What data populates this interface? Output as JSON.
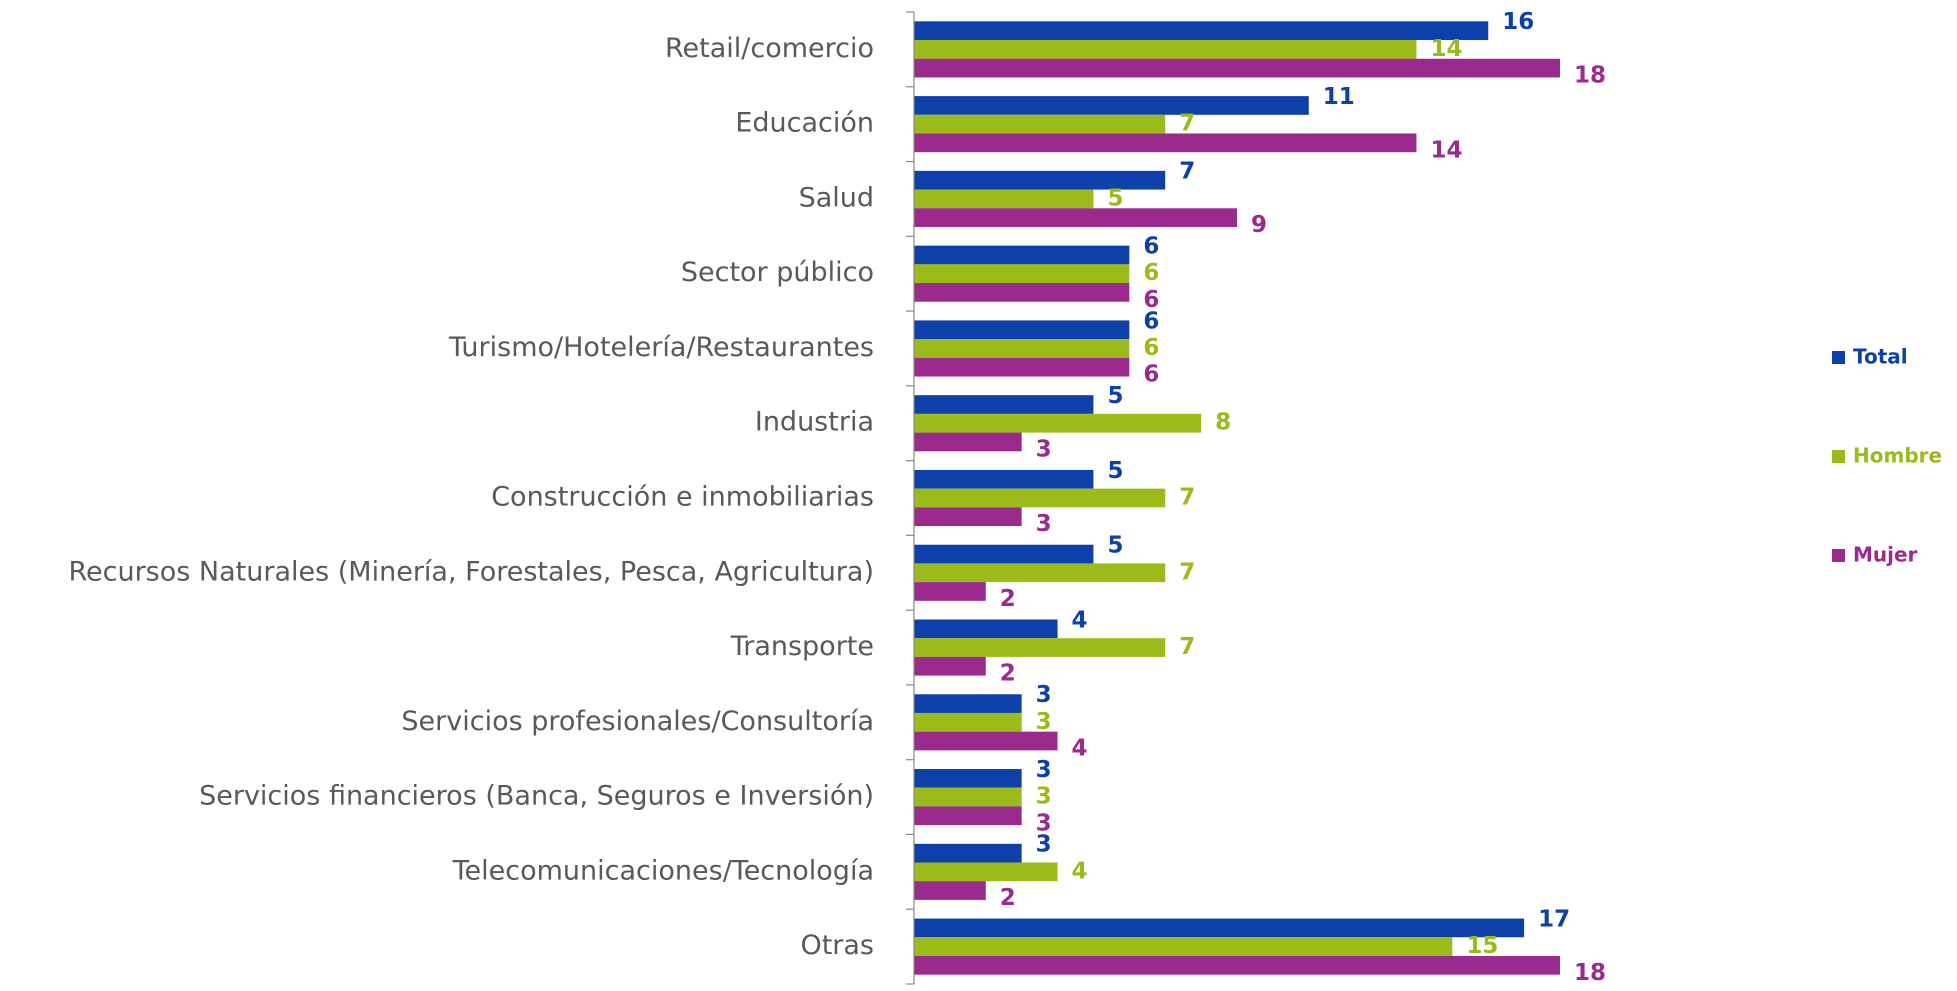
{
  "chart_data": {
    "type": "bar",
    "orientation": "horizontal",
    "categories": [
      "Retail/comercio",
      "Educación",
      "Salud",
      "Sector público",
      "Turismo/Hotelería/Restaurantes",
      "Industria",
      "Construcción e inmobiliarias",
      "Recursos Naturales (Minería, Forestales, Pesca, Agricultura)",
      "Transporte",
      "Servicios profesionales/Consultoría",
      "Servicios financieros (Banca, Seguros e Inversión)",
      "Telecomunicaciones/Tecnología",
      "Otras"
    ],
    "series": [
      {
        "name": "Total",
        "color": "#0d40a8",
        "values": [
          16,
          11,
          7,
          6,
          6,
          5,
          5,
          5,
          4,
          3,
          3,
          3,
          17
        ]
      },
      {
        "name": "Hombre",
        "color": "#9abb1a",
        "values": [
          14,
          7,
          5,
          6,
          6,
          8,
          7,
          7,
          7,
          3,
          3,
          4,
          15
        ]
      },
      {
        "name": "Mujer",
        "color": "#9b2a8d",
        "values": [
          18,
          14,
          9,
          6,
          6,
          3,
          3,
          2,
          2,
          4,
          3,
          2,
          18
        ]
      }
    ],
    "legend": "right"
  }
}
